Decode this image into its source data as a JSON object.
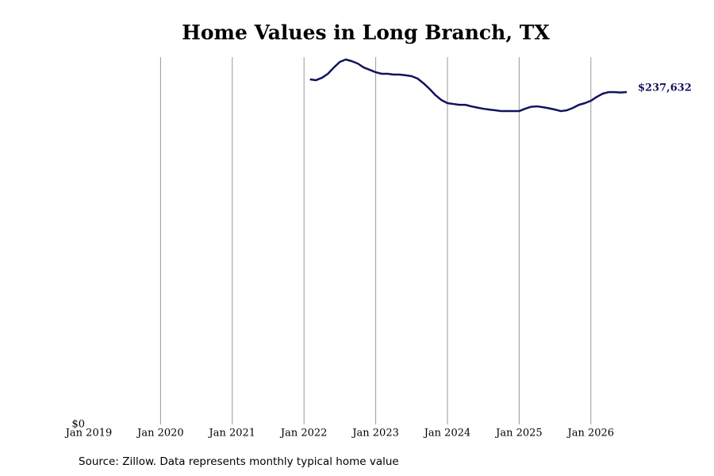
{
  "chart_data": {
    "type": "line",
    "title": "Home Values in Long Branch, TX",
    "source": "Source: Zillow. Data represents monthly typical home value",
    "x": [
      "2022-02",
      "2022-03",
      "2022-04",
      "2022-05",
      "2022-06",
      "2022-07",
      "2022-08",
      "2022-09",
      "2022-10",
      "2022-11",
      "2022-12",
      "2023-01",
      "2023-02",
      "2023-03",
      "2023-04",
      "2023-05",
      "2023-06",
      "2023-07",
      "2023-08",
      "2023-09",
      "2023-10",
      "2023-11",
      "2023-12",
      "2024-01",
      "2024-02",
      "2024-03",
      "2024-04",
      "2024-05",
      "2024-06",
      "2024-07",
      "2024-08",
      "2024-09",
      "2024-10",
      "2024-11",
      "2024-12",
      "2025-01",
      "2025-02",
      "2025-03",
      "2025-04",
      "2025-05",
      "2025-06",
      "2025-07",
      "2025-08",
      "2025-09",
      "2025-10",
      "2025-11",
      "2025-12",
      "2026-01",
      "2026-02",
      "2026-03",
      "2026-04",
      "2026-05",
      "2026-06",
      "2026-07"
    ],
    "series": [
      {
        "name": "Home value",
        "color": "#12125e",
        "values": [
          246700,
          246100,
          247800,
          250700,
          255200,
          259200,
          260900,
          259700,
          258000,
          255200,
          253500,
          251800,
          250700,
          250700,
          250100,
          250100,
          249600,
          249000,
          247300,
          243900,
          239900,
          235400,
          231900,
          229700,
          229100,
          228500,
          228500,
          227400,
          226500,
          225700,
          225100,
          224600,
          224000,
          224000,
          224000,
          224000,
          225700,
          227100,
          227400,
          226800,
          226000,
          225100,
          224000,
          224600,
          226300,
          228500,
          229700,
          231400,
          234200,
          236500,
          237600,
          237600,
          237300,
          237632
        ],
        "value_labels": [
          null,
          null,
          null,
          null,
          null,
          null,
          null,
          null,
          null,
          null,
          null,
          null,
          null,
          null,
          null,
          null,
          null,
          null,
          null,
          null,
          null,
          null,
          null,
          null,
          null,
          null,
          null,
          null,
          null,
          null,
          null,
          null,
          null,
          null,
          null,
          null,
          null,
          null,
          null,
          null,
          null,
          null,
          null,
          null,
          null,
          null,
          null,
          null,
          null,
          null,
          null,
          null,
          null,
          "$237,632"
        ]
      }
    ],
    "xlim": [
      "2019-01",
      "2026-07"
    ],
    "xticks": [
      {
        "value": "2019-01",
        "label": "Jan 2019"
      },
      {
        "value": "2020-01",
        "label": "Jan 2020"
      },
      {
        "value": "2021-01",
        "label": "Jan 2021"
      },
      {
        "value": "2022-01",
        "label": "Jan 2022"
      },
      {
        "value": "2023-01",
        "label": "Jan 2023"
      },
      {
        "value": "2024-01",
        "label": "Jan 2024"
      },
      {
        "value": "2025-01",
        "label": "Jan 2025"
      },
      {
        "value": "2026-01",
        "label": "Jan 2026"
      }
    ],
    "ylim": [
      0,
      262600
    ],
    "yticks": [
      {
        "value": 0,
        "label": "$0"
      }
    ],
    "grid": true
  }
}
